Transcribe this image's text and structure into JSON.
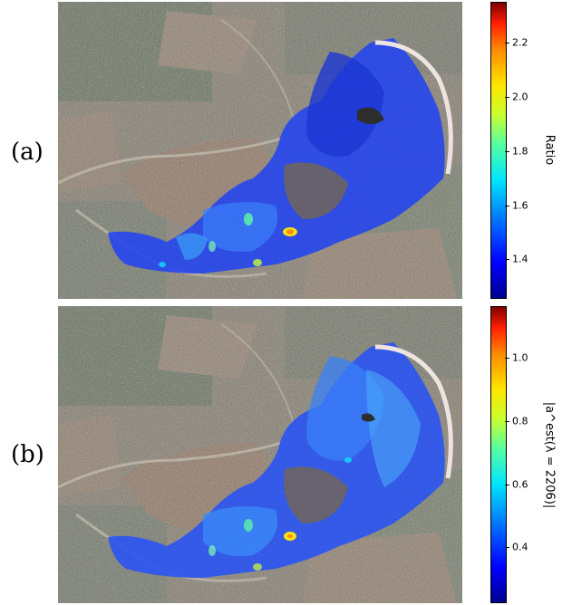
{
  "panels": [
    {
      "label": "(a)",
      "colorbar_title": "Ratio",
      "ticks": [
        "2.2",
        "2.0",
        "1.8",
        "1.6",
        "1.4"
      ]
    },
    {
      "label": "(b)",
      "colorbar_title": "|a^est(λ = 2206)|",
      "ticks": [
        "1.0",
        "0.8",
        "0.6",
        "0.4"
      ]
    }
  ],
  "colormap": [
    "#00008f",
    "#0000ff",
    "#00e5ff",
    "#c8ff30",
    "#ffe600",
    "#ff1f00",
    "#800000"
  ]
}
